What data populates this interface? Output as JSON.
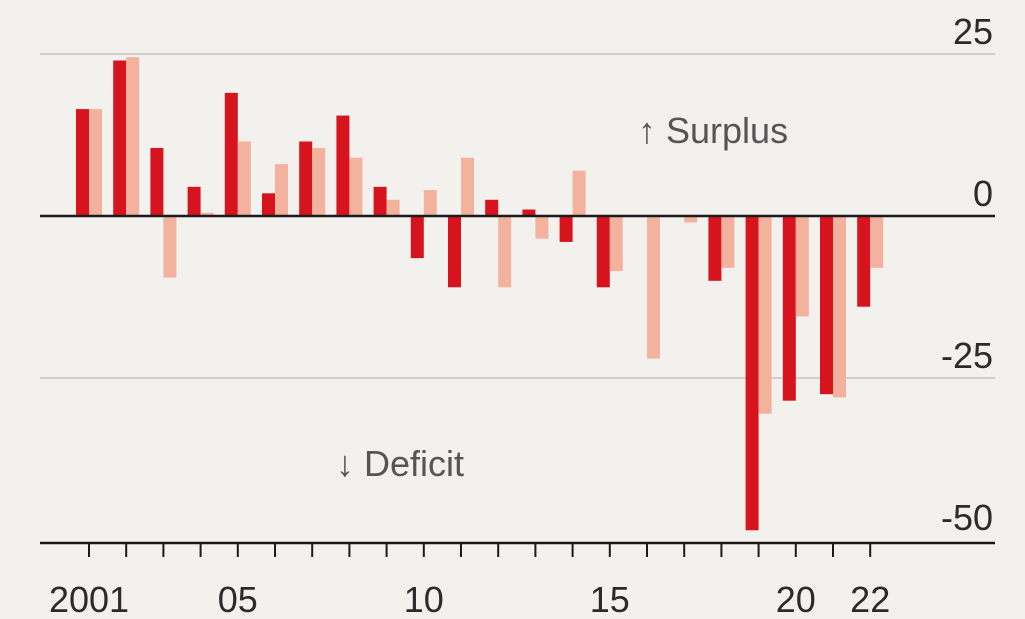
{
  "chart_data": {
    "type": "bar",
    "title": "",
    "xlabel": "",
    "ylabel": "",
    "x": [
      2001,
      2002,
      2003,
      2004,
      2005,
      2006,
      2007,
      2008,
      2009,
      2010,
      2011,
      2012,
      2013,
      2014,
      2015,
      2016,
      2017,
      2018,
      2019,
      2020,
      2021,
      2022
    ],
    "xtick_labels": [
      {
        "x": 2001,
        "label": "2001"
      },
      {
        "x": 2005,
        "label": "05"
      },
      {
        "x": 2010,
        "label": "10"
      },
      {
        "x": 2015,
        "label": "15"
      },
      {
        "x": 2020,
        "label": "20"
      },
      {
        "x": 2022,
        "label": "22"
      }
    ],
    "series": [
      {
        "color": "#d7141e",
        "values": [
          16.5,
          24,
          10.5,
          4.5,
          19,
          3.5,
          11.5,
          15.5,
          4.5,
          -6.5,
          -11,
          2.5,
          1,
          -4,
          -11,
          0,
          0,
          -10,
          -48.5,
          -28.5,
          -27.5,
          -14
        ]
      },
      {
        "color": "#f3b29e",
        "values": [
          16.5,
          24.5,
          -9.5,
          0.5,
          11.5,
          8,
          10.5,
          9,
          2.5,
          4,
          9,
          -11,
          -3.5,
          7,
          -8.5,
          -22,
          -1,
          -8,
          -30.5,
          -15.5,
          -28,
          -8
        ]
      }
    ],
    "yticks": [
      25,
      0,
      -25,
      -50
    ],
    "ylim": [
      -50,
      25
    ],
    "grid": true,
    "annotations": {
      "surplus": "↑ Surplus",
      "deficit": "↓ Deficit"
    },
    "colors": {
      "background": "#f2f1ee",
      "gridline": "#d0cfcb",
      "zero_line": "#1a1a1a",
      "primary": "#d7141e",
      "secondary": "#f3b29e"
    }
  }
}
